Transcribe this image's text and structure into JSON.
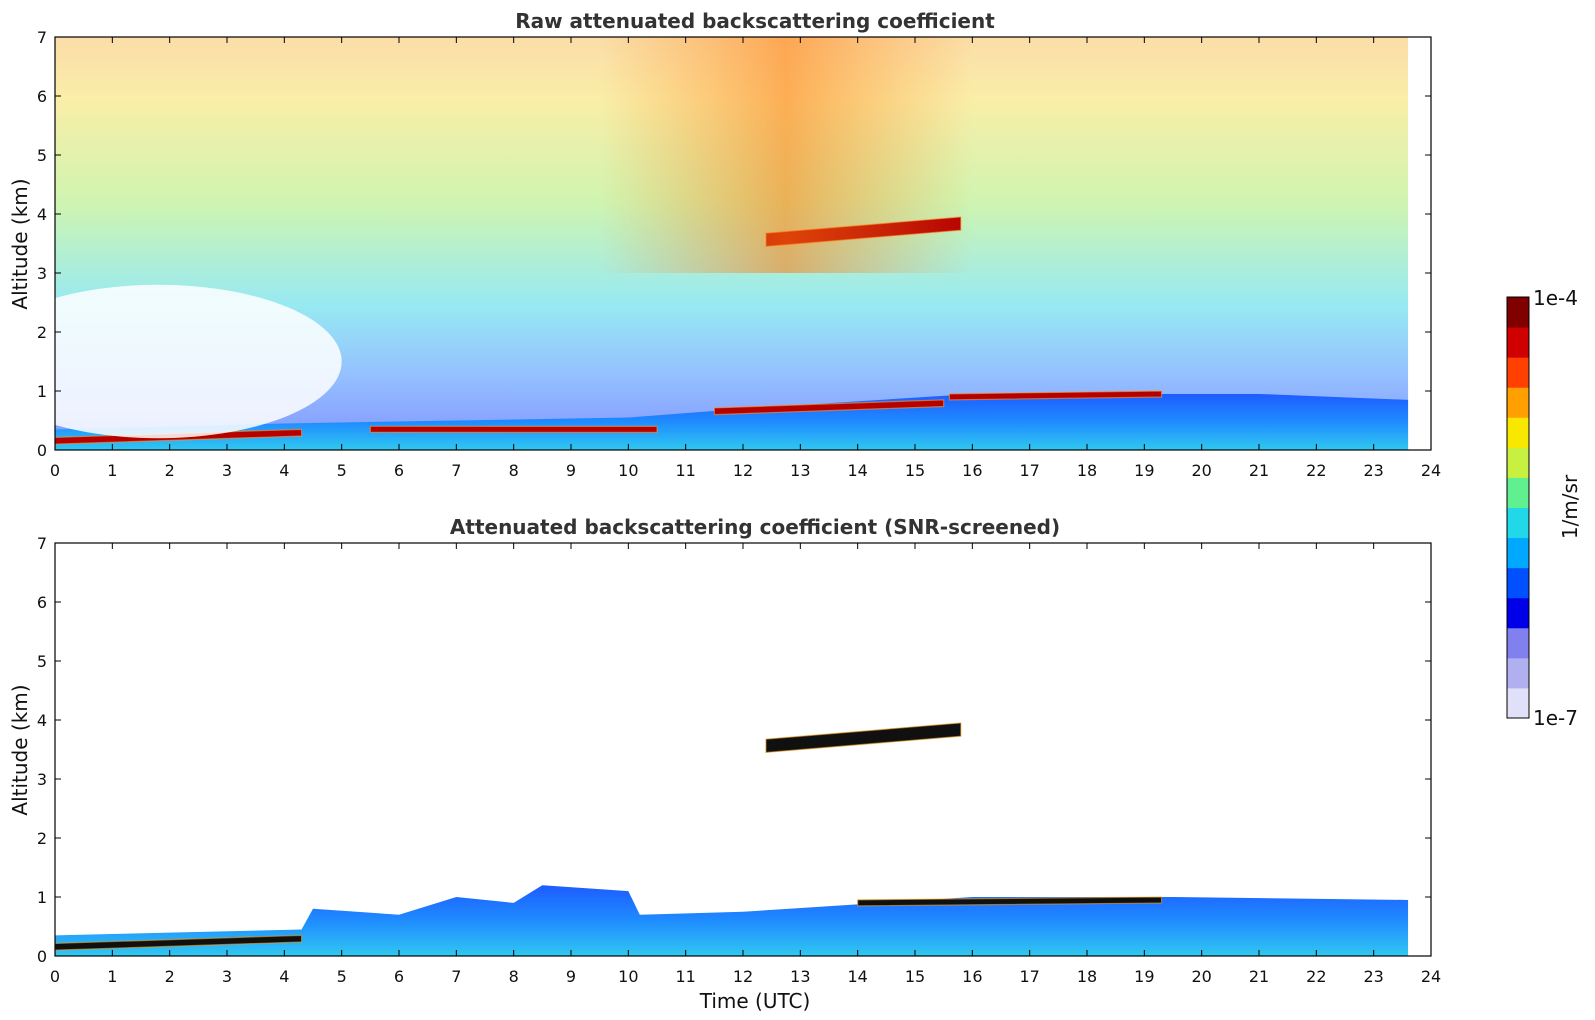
{
  "chart_data": [
    {
      "type": "heatmap",
      "title": "Raw attenuated backscattering coefficient",
      "xlabel": "",
      "ylabel": "Altitude (km)",
      "xlim": [
        0,
        24
      ],
      "ylim": [
        0,
        7
      ],
      "xticks": [
        0,
        1,
        2,
        3,
        4,
        5,
        6,
        7,
        8,
        9,
        10,
        11,
        12,
        13,
        14,
        15,
        16,
        17,
        18,
        19,
        20,
        21,
        22,
        23,
        24
      ],
      "yticks": [
        0,
        1,
        2,
        3,
        4,
        5,
        6,
        7
      ],
      "data_end_time": 23.6,
      "features": [
        {
          "name": "boundary-layer-aerosol",
          "top_km": [
            [
              0,
              0.35
            ],
            [
              4,
              0.45
            ],
            [
              10,
              0.55
            ],
            [
              12,
              0.7
            ],
            [
              16,
              0.95
            ],
            [
              19.5,
              0.95
            ],
            [
              21,
              0.95
            ],
            [
              23.6,
              0.85
            ]
          ]
        },
        {
          "name": "low-cloud-segments",
          "segments": [
            [
              0,
              4.3,
              0.1,
              0.35
            ],
            [
              5.5,
              10.5,
              0.3,
              0.4
            ],
            [
              11.5,
              15.5,
              0.6,
              0.85
            ],
            [
              15.6,
              19.3,
              0.85,
              1.0
            ]
          ]
        },
        {
          "name": "mid-level-cloud",
          "segments": [
            [
              12.4,
              15.8,
              3.45,
              3.95
            ]
          ]
        },
        {
          "name": "background-noise",
          "upper_color": "high",
          "lower_color": "low"
        }
      ]
    },
    {
      "type": "heatmap",
      "title": "Attenuated backscattering coefficient (SNR-screened)",
      "xlabel": "Time (UTC)",
      "ylabel": "Altitude (km)",
      "xlim": [
        0,
        24
      ],
      "ylim": [
        0,
        7
      ],
      "xticks": [
        0,
        1,
        2,
        3,
        4,
        5,
        6,
        7,
        8,
        9,
        10,
        11,
        12,
        13,
        14,
        15,
        16,
        17,
        18,
        19,
        20,
        21,
        22,
        23,
        24
      ],
      "yticks": [
        0,
        1,
        2,
        3,
        4,
        5,
        6,
        7
      ],
      "data_end_time": 23.6,
      "features": [
        {
          "name": "boundary-layer-aerosol",
          "top_km": [
            [
              0,
              0.35
            ],
            [
              4.3,
              0.45
            ],
            [
              4.5,
              0.8
            ],
            [
              6,
              0.7
            ],
            [
              7,
              1.0
            ],
            [
              8,
              0.9
            ],
            [
              8.5,
              1.2
            ],
            [
              10,
              1.1
            ],
            [
              10.2,
              0.7
            ],
            [
              12,
              0.75
            ],
            [
              16,
              1.0
            ],
            [
              19.5,
              1.0
            ],
            [
              23.6,
              0.95
            ]
          ]
        },
        {
          "name": "saturated-cloud",
          "segments": [
            [
              0,
              4.3,
              0.1,
              0.35
            ],
            [
              12.4,
              15.8,
              3.45,
              3.95
            ],
            [
              14,
              19.3,
              0.85,
              1.0
            ]
          ]
        }
      ]
    }
  ],
  "colorbar": {
    "max_label": "1e-4",
    "min_label": "1e-7",
    "unit_label": "1/m/sr",
    "colors": [
      "#e0e0f8",
      "#b0b0f0",
      "#8080ee",
      "#0000e8",
      "#0050ff",
      "#00a8ff",
      "#20d8e8",
      "#60f090",
      "#c8f040",
      "#f8e800",
      "#ffa000",
      "#ff4000",
      "#d00000",
      "#800000"
    ]
  }
}
